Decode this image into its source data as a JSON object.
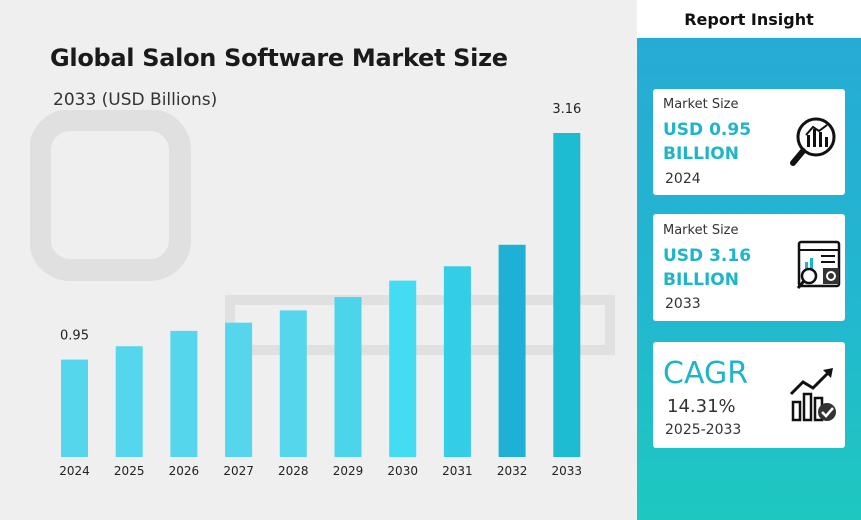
{
  "chart_data": {
    "type": "bar",
    "title": "Global Salon Software Market Size",
    "subtitle": "2033 (USD Billions)",
    "categories": [
      "2024",
      "2025",
      "2026",
      "2027",
      "2028",
      "2029",
      "2030",
      "2031",
      "2032",
      "2033"
    ],
    "values": [
      0.95,
      1.08,
      1.23,
      1.31,
      1.43,
      1.56,
      1.72,
      1.86,
      2.07,
      3.16
    ],
    "shown_labels": {
      "0": "0.95",
      "9": "3.16"
    },
    "ylim": [
      0,
      3.16
    ],
    "colors": [
      "#56d6ec",
      "#56d6ec",
      "#56d6ec",
      "#56d6ec",
      "#56d6ec",
      "#4bd4ea",
      "#44dcf2",
      "#34cde6",
      "#1fb0d6",
      "#1dbcd0"
    ]
  },
  "insight": {
    "header": "Report Insight",
    "card1": {
      "label": "Market Size",
      "value_line1": "USD 0.95",
      "value_line2": "BILLION",
      "year": "2024"
    },
    "card2": {
      "label": "Market Size",
      "value_line1": "USD 3.16",
      "value_line2": "BILLION",
      "year": "2033"
    },
    "card3": {
      "label": "CAGR",
      "value": "14.31%",
      "period": "2025-2033"
    }
  }
}
